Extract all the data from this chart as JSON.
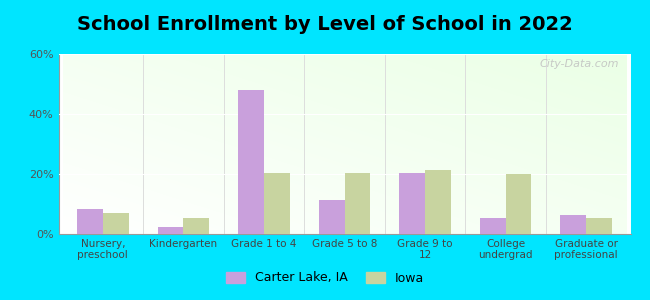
{
  "title": "School Enrollment by Level of School in 2022",
  "categories": [
    "Nursery,\npreschool",
    "Kindergarten",
    "Grade 1 to 4",
    "Grade 5 to 8",
    "Grade 9 to\n12",
    "College\nundergrad",
    "Graduate or\nprofessional"
  ],
  "carter_lake": [
    8.5,
    2.5,
    48.0,
    11.5,
    20.5,
    5.5,
    6.5
  ],
  "iowa": [
    7.0,
    5.5,
    20.5,
    20.5,
    21.5,
    20.0,
    5.5
  ],
  "carter_lake_color": "#c9a0dc",
  "iowa_color": "#c8d4a0",
  "background_color": "#00e5ff",
  "ylim": [
    0,
    60
  ],
  "yticks": [
    0,
    20,
    40,
    60
  ],
  "ytick_labels": [
    "0%",
    "20%",
    "40%",
    "60%"
  ],
  "title_fontsize": 14,
  "legend_label_carter": "Carter Lake, IA",
  "legend_label_iowa": "Iowa",
  "bar_width": 0.32,
  "watermark": "City-Data.com"
}
